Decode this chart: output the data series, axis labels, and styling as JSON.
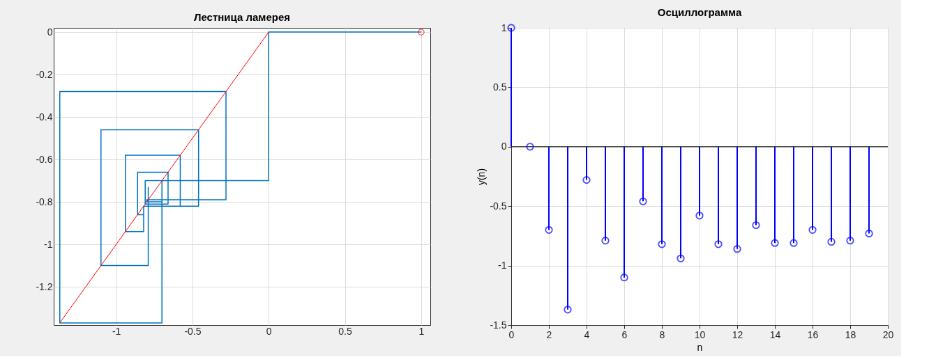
{
  "chart_data": [
    {
      "type": "line",
      "title": "Лестница ламерея",
      "xlim": [
        -1.41,
        1.06
      ],
      "ylim": [
        -1.38,
        0.02
      ],
      "xticks": [
        -1,
        -0.5,
        0,
        0.5,
        1
      ],
      "yticks": [
        -1.2,
        -1,
        -0.8,
        -0.6,
        -0.4,
        -0.2,
        0
      ],
      "grid": true,
      "marker": "none",
      "line_style": "solid",
      "series": [
        {
          "type": "line",
          "color": "#0072bd",
          "x": [
            1,
            0,
            0,
            -0.7,
            -0.7,
            -1.37,
            -1.37,
            -0.28,
            -0.28,
            -0.79,
            -0.79,
            -1.1,
            -1.1,
            -0.46,
            -0.46,
            -0.82,
            -0.82,
            -0.94,
            -0.94,
            -0.58,
            -0.58,
            -0.82,
            -0.82,
            -0.86,
            -0.86,
            -0.66,
            -0.66,
            -0.81,
            -0.81,
            -0.81,
            -0.81,
            -0.7,
            -0.7,
            -0.8,
            -0.8,
            -0.79,
            -0.79
          ],
          "values": [
            0,
            0,
            -0.7,
            -0.7,
            -1.37,
            -1.37,
            -0.28,
            -0.28,
            -0.79,
            -0.79,
            -1.1,
            -1.1,
            -0.46,
            -0.46,
            -0.82,
            -0.82,
            -0.94,
            -0.94,
            -0.58,
            -0.58,
            -0.82,
            -0.82,
            -0.86,
            -0.86,
            -0.66,
            -0.66,
            -0.81,
            -0.81,
            -0.81,
            -0.81,
            -0.7,
            -0.7,
            -0.8,
            -0.8,
            -0.79,
            -0.79,
            -0.73
          ]
        },
        {
          "type": "line",
          "color": "#ff0000",
          "x": [
            -1.37,
            0
          ],
          "values": [
            -1.37,
            0
          ]
        },
        {
          "type": "scatter",
          "color": "#ff0000",
          "marker": "circle",
          "x": [
            1
          ],
          "values": [
            0
          ]
        }
      ]
    },
    {
      "type": "lollipop",
      "title": "Осциллограмма",
      "xlabel": "n",
      "ylabel": "y(n)",
      "xlim": [
        0,
        20
      ],
      "ylim": [
        -1.5,
        1
      ],
      "xticks": [
        0,
        2,
        4,
        6,
        8,
        10,
        12,
        14,
        16,
        18,
        20
      ],
      "yticks": [
        -1.5,
        -1,
        -0.5,
        0,
        0.5,
        1
      ],
      "grid": true,
      "marker": "circle",
      "ref_lines": [
        {
          "axis": "y",
          "value": 0,
          "color": "#000000"
        }
      ],
      "x": [
        0,
        1,
        2,
        3,
        4,
        5,
        6,
        7,
        8,
        9,
        10,
        11,
        12,
        13,
        14,
        15,
        16,
        17,
        18,
        19
      ],
      "series": [
        {
          "color": "#0000ff",
          "values": [
            1,
            0,
            -0.7,
            -1.37,
            -0.28,
            -0.79,
            -1.1,
            -0.46,
            -0.82,
            -0.94,
            -0.58,
            -0.82,
            -0.86,
            -0.66,
            -0.81,
            -0.81,
            -0.7,
            -0.8,
            -0.79,
            -0.73
          ]
        }
      ]
    }
  ]
}
